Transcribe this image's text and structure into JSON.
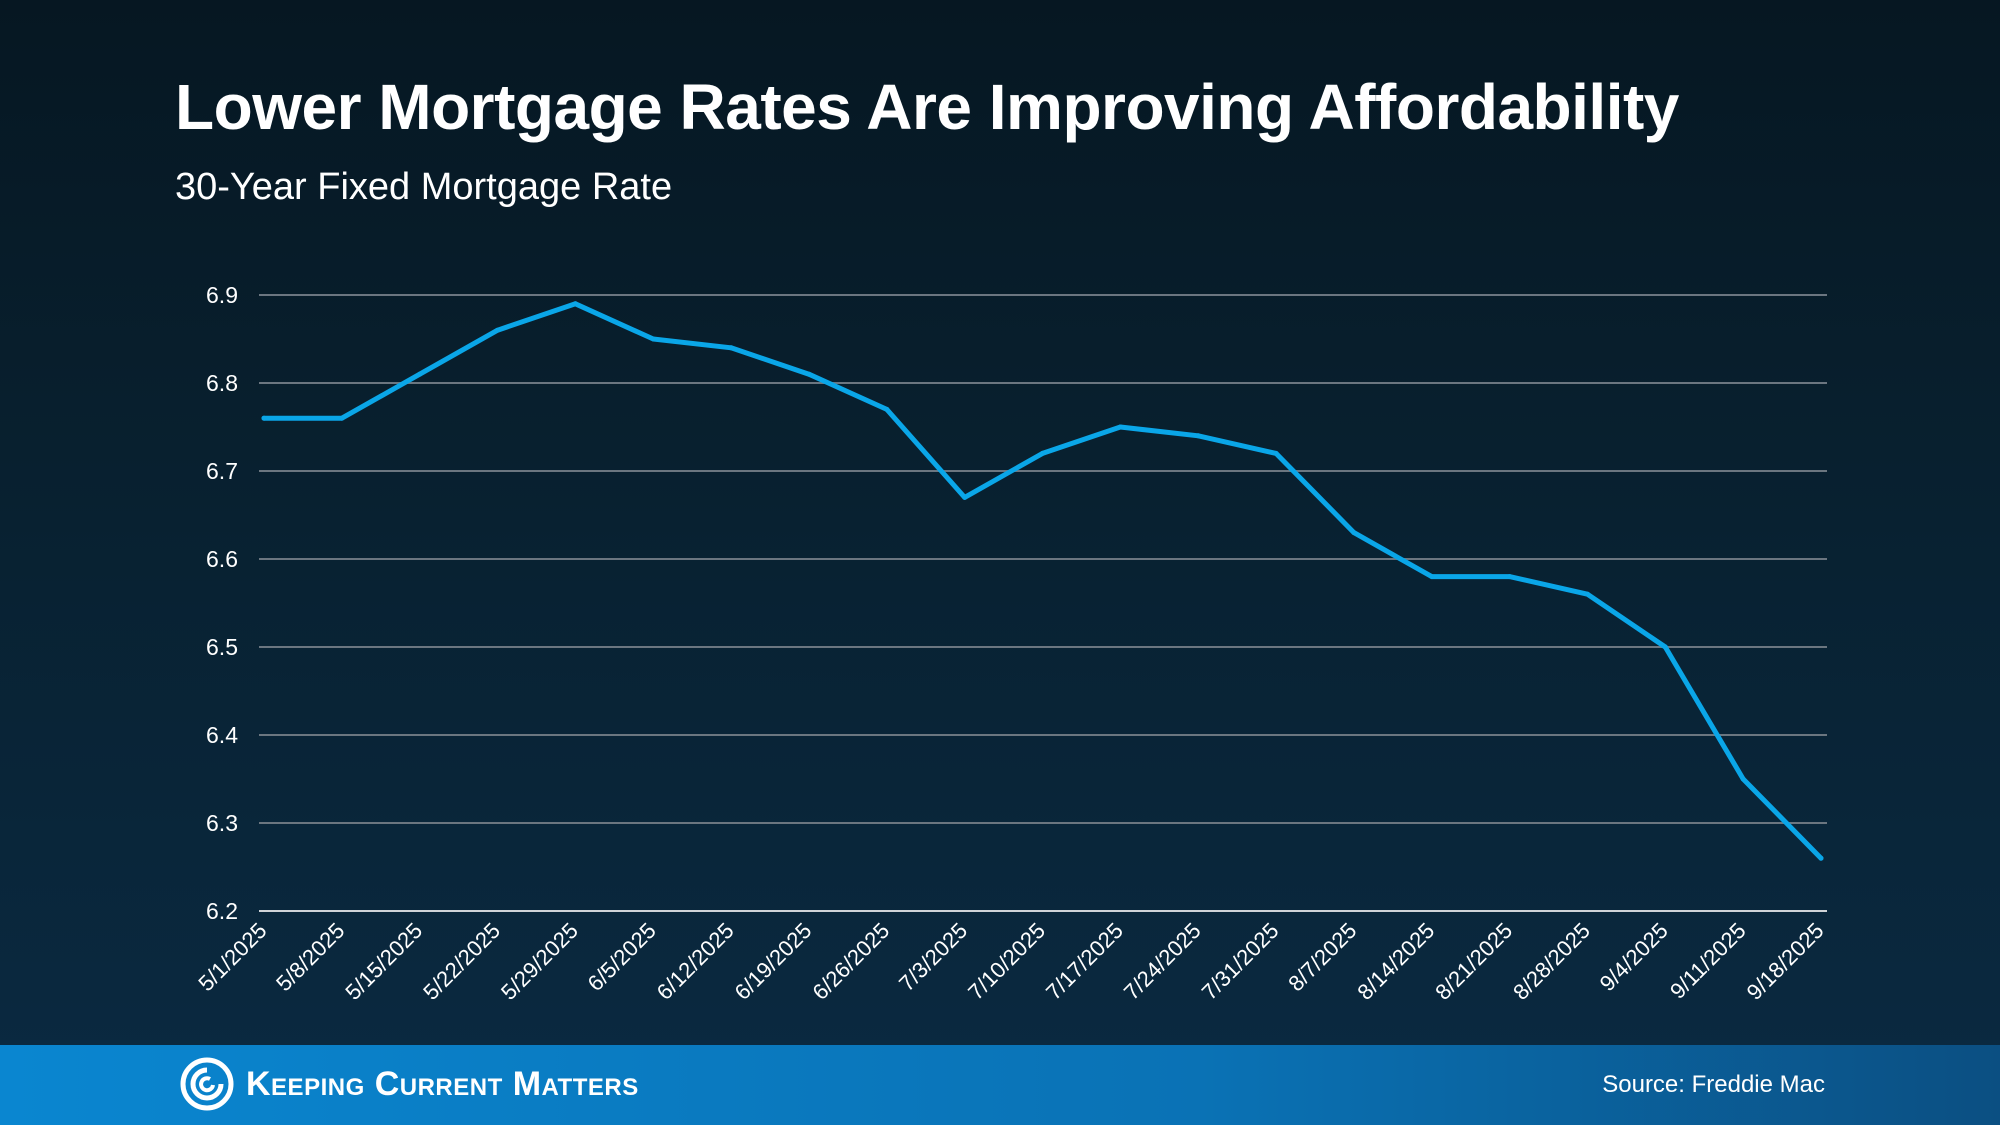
{
  "header": {
    "title": "Lower Mortgage Rates Are Improving Affordability",
    "subtitle": "30-Year Fixed Mortgage Rate"
  },
  "footer": {
    "logo_text": "Keeping Current Matters",
    "source": "Source: Freddie Mac"
  },
  "colors": {
    "line": "#0aa6e8",
    "grid": "#6b7680",
    "footer": "#0a7bc4"
  },
  "chart_data": {
    "type": "line",
    "title": "Lower Mortgage Rates Are Improving Affordability",
    "subtitle": "30-Year Fixed Mortgage Rate",
    "xlabel": "",
    "ylabel": "",
    "ylim": [
      6.2,
      6.9
    ],
    "yticks": [
      "6.2",
      "6.3",
      "6.4",
      "6.5",
      "6.6",
      "6.7",
      "6.8",
      "6.9"
    ],
    "grid": true,
    "categories": [
      "5/1/2025",
      "5/8/2025",
      "5/15/2025",
      "5/22/2025",
      "5/29/2025",
      "6/5/2025",
      "6/12/2025",
      "6/19/2025",
      "6/26/2025",
      "7/3/2025",
      "7/10/2025",
      "7/17/2025",
      "7/24/2025",
      "7/31/2025",
      "8/7/2025",
      "8/14/2025",
      "8/21/2025",
      "8/28/2025",
      "9/4/2025",
      "9/11/2025",
      "9/18/2025"
    ],
    "values": [
      6.76,
      6.76,
      6.81,
      6.86,
      6.89,
      6.85,
      6.84,
      6.81,
      6.77,
      6.67,
      6.72,
      6.75,
      6.74,
      6.72,
      6.63,
      6.58,
      6.58,
      6.56,
      6.5,
      6.35,
      6.26
    ]
  }
}
